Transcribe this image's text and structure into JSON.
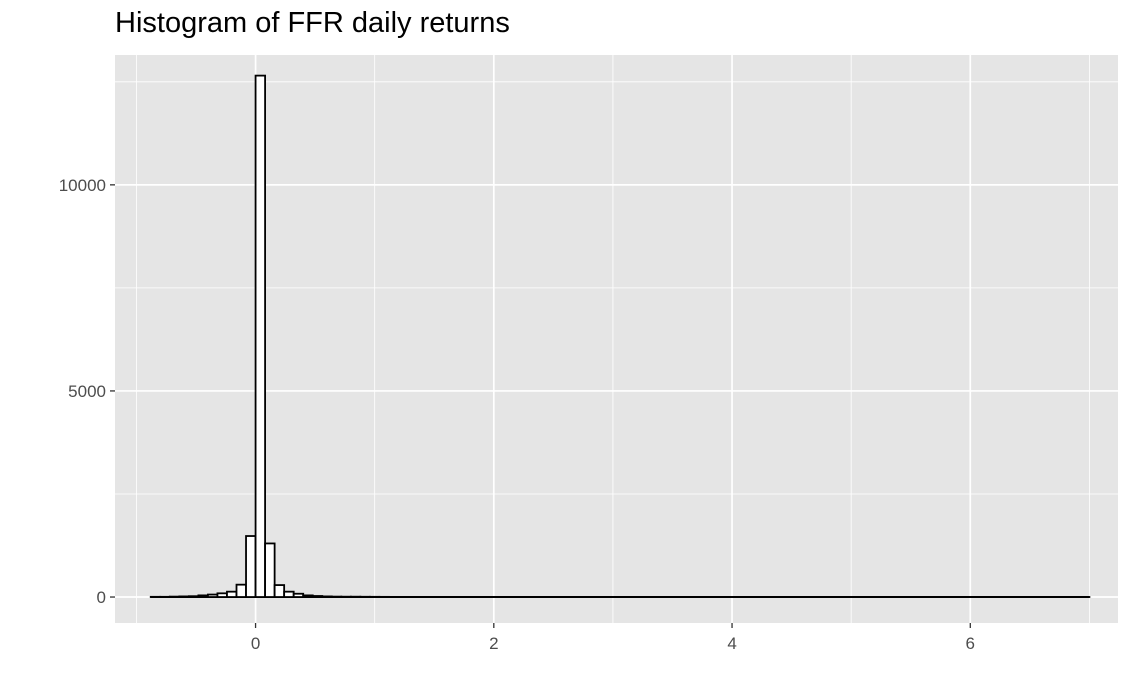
{
  "chart_data": {
    "type": "bar",
    "title": "Histogram of FFR daily returns",
    "xlabel": "",
    "ylabel": "",
    "xlim": [
      -1.18,
      7.24
    ],
    "ylim": [
      -630,
      13150
    ],
    "x_ticks": [
      0,
      2,
      4,
      6
    ],
    "x_tick_labels": [
      "0",
      "2",
      "4",
      "6"
    ],
    "y_ticks": [
      0,
      5000,
      10000
    ],
    "y_tick_labels": [
      "0",
      "5000",
      "10000"
    ],
    "grid": true,
    "bin_width": 0.08,
    "bins": [
      {
        "x": -0.84,
        "count": 5
      },
      {
        "x": -0.76,
        "count": 5
      },
      {
        "x": -0.68,
        "count": 10
      },
      {
        "x": -0.6,
        "count": 15
      },
      {
        "x": -0.52,
        "count": 20
      },
      {
        "x": -0.44,
        "count": 40
      },
      {
        "x": -0.36,
        "count": 60
      },
      {
        "x": -0.28,
        "count": 90
      },
      {
        "x": -0.2,
        "count": 130
      },
      {
        "x": -0.12,
        "count": 300
      },
      {
        "x": -0.04,
        "count": 1480
      },
      {
        "x": 0.04,
        "count": 12650
      },
      {
        "x": 0.12,
        "count": 1300
      },
      {
        "x": 0.2,
        "count": 290
      },
      {
        "x": 0.28,
        "count": 130
      },
      {
        "x": 0.36,
        "count": 80
      },
      {
        "x": 0.44,
        "count": 40
      },
      {
        "x": 0.52,
        "count": 25
      },
      {
        "x": 0.6,
        "count": 15
      },
      {
        "x": 0.68,
        "count": 10
      },
      {
        "x": 0.76,
        "count": 8
      },
      {
        "x": 0.84,
        "count": 8
      },
      {
        "x": 0.92,
        "count": 6
      },
      {
        "x": 1.0,
        "count": 5
      },
      {
        "x": 1.08,
        "count": 4
      },
      {
        "x": 1.16,
        "count": 3
      },
      {
        "x": 1.24,
        "count": 3
      },
      {
        "x": 1.32,
        "count": 2
      },
      {
        "x": 1.4,
        "count": 2
      },
      {
        "x": 1.48,
        "count": 2
      },
      {
        "x": 1.56,
        "count": 1
      },
      {
        "x": 1.64,
        "count": 1
      },
      {
        "x": 1.72,
        "count": 1
      },
      {
        "x": 2.52,
        "count": 1
      },
      {
        "x": 6.96,
        "count": 1
      }
    ],
    "series_color": "#000000",
    "fill": "#ffffff",
    "panel_background": "#e5e5e5",
    "grid_color": "#ffffff"
  }
}
